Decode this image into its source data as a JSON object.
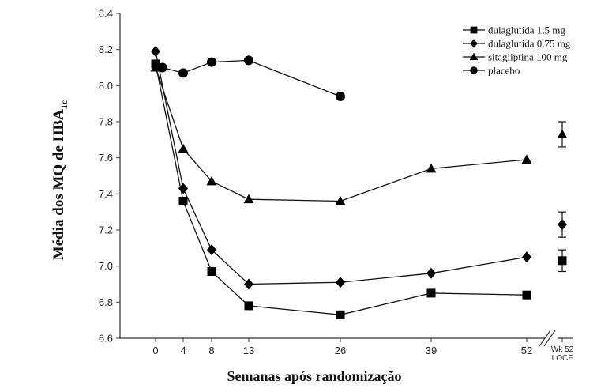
{
  "chart_data": {
    "type": "line",
    "title": "",
    "xlabel": "Semanas após randomização",
    "ylabel": "Média dos MQ de HBA",
    "ylabel_sub": "1c",
    "ylim": [
      6.6,
      8.4
    ],
    "y_ticks": [
      "6.6",
      "6.8",
      "7.0",
      "7.2",
      "7.4",
      "7.6",
      "7.8",
      "8.0",
      "8.2",
      "8.4"
    ],
    "x_ticks": [
      "0",
      "4",
      "8",
      "13",
      "26",
      "39",
      "52"
    ],
    "extra_tick": [
      "Wk 52",
      "LOCF"
    ],
    "legend_position": "top-right",
    "grid": false,
    "series": [
      {
        "name": "dulaglutida 1,5 mg",
        "marker": "square",
        "x": [
          0,
          4,
          8,
          13,
          26,
          39,
          52
        ],
        "y": [
          8.12,
          7.36,
          6.97,
          6.78,
          6.73,
          6.85,
          6.84
        ],
        "locf": {
          "y": 7.03,
          "low": 6.97,
          "high": 7.09
        }
      },
      {
        "name": "dulaglutida 0,75 mg",
        "marker": "diamond",
        "x": [
          0,
          4,
          8,
          13,
          26,
          39,
          52
        ],
        "y": [
          8.19,
          7.43,
          7.09,
          6.9,
          6.91,
          6.96,
          7.05
        ],
        "locf": {
          "y": 7.23,
          "low": 7.16,
          "high": 7.3
        }
      },
      {
        "name": "sitagliptina 100 mg",
        "marker": "triangle",
        "x": [
          0,
          4,
          8,
          13,
          26,
          39,
          52
        ],
        "y": [
          8.1,
          7.65,
          7.47,
          7.37,
          7.36,
          7.54,
          7.59
        ],
        "locf": {
          "y": 7.73,
          "low": 7.66,
          "high": 7.8
        }
      },
      {
        "name": "placebo",
        "marker": "circle",
        "x": [
          1,
          4,
          8,
          13,
          26
        ],
        "y": [
          8.1,
          8.07,
          8.13,
          8.14,
          7.94
        ]
      }
    ]
  }
}
